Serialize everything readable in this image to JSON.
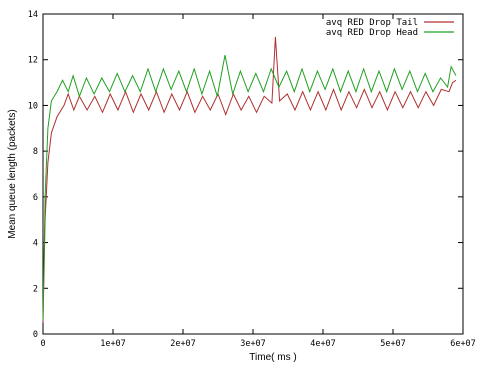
{
  "chart_data": {
    "type": "line",
    "xlabel": "Time( ms )",
    "ylabel": "Mean queue length (packets)",
    "xlim": [
      0,
      60000000
    ],
    "ylim": [
      0,
      14
    ],
    "x_ticks": [
      0,
      10000000,
      20000000,
      30000000,
      40000000,
      50000000,
      60000000
    ],
    "x_tick_labels": [
      "0",
      "1e+07",
      "2e+07",
      "3e+07",
      "4e+07",
      "5e+07",
      "6e+07"
    ],
    "y_ticks": [
      0,
      2,
      4,
      6,
      8,
      10,
      12,
      14
    ],
    "y_tick_labels": [
      "0",
      "2",
      "4",
      "6",
      "8",
      "10",
      "12",
      "14"
    ],
    "grid": false,
    "legend_position": "top-right",
    "series": [
      {
        "name": "avq RED Drop Tail",
        "color": "#b03030",
        "x": [
          0,
          300000,
          700000,
          1200000,
          2000000,
          3000000,
          3600000,
          4400000,
          5200000,
          6300000,
          7400000,
          8500000,
          9600000,
          10700000,
          11800000,
          12900000,
          14000000,
          15100000,
          16200000,
          17300000,
          18400000,
          19500000,
          20600000,
          21700000,
          22800000,
          23900000,
          25000000,
          26100000,
          27200000,
          28300000,
          29400000,
          30500000,
          31600000,
          32700000,
          33200000,
          33800000,
          34900000,
          36000000,
          37100000,
          38200000,
          39300000,
          40400000,
          41500000,
          42600000,
          43700000,
          44800000,
          45900000,
          47000000,
          48100000,
          49200000,
          50300000,
          51400000,
          52500000,
          53600000,
          54700000,
          55800000,
          56900000,
          58000000,
          58500000,
          59000000
        ],
        "y": [
          0.5,
          5.0,
          7.5,
          8.8,
          9.5,
          10.0,
          10.5,
          9.8,
          10.4,
          9.8,
          10.4,
          9.7,
          10.5,
          9.8,
          10.6,
          9.7,
          10.5,
          9.8,
          10.6,
          9.7,
          10.5,
          9.8,
          10.6,
          9.7,
          10.4,
          9.8,
          10.5,
          9.6,
          10.5,
          9.8,
          10.4,
          9.7,
          10.4,
          10.1,
          13.0,
          10.2,
          10.5,
          9.8,
          10.6,
          9.8,
          10.6,
          9.8,
          10.7,
          9.8,
          10.6,
          9.9,
          10.7,
          9.9,
          10.6,
          9.8,
          10.6,
          9.9,
          10.6,
          9.9,
          10.6,
          10.0,
          10.7,
          10.6,
          11.0,
          11.1
        ]
      },
      {
        "name": "avq RED Drop Head",
        "color": "#20a020",
        "x": [
          0,
          300000,
          700000,
          1200000,
          2000000,
          2800000,
          3600000,
          4300000,
          5200000,
          6200000,
          7300000,
          8400000,
          9500000,
          10600000,
          11700000,
          12800000,
          13900000,
          15000000,
          16100000,
          17200000,
          18300000,
          19400000,
          20500000,
          21600000,
          22700000,
          23800000,
          24900000,
          26000000,
          27100000,
          28200000,
          29300000,
          30400000,
          31500000,
          32600000,
          33700000,
          34800000,
          35900000,
          37000000,
          38100000,
          39200000,
          40300000,
          41400000,
          42500000,
          43600000,
          44700000,
          45800000,
          46900000,
          48000000,
          49100000,
          50200000,
          51300000,
          52400000,
          53500000,
          54600000,
          55700000,
          56800000,
          57800000,
          58300000,
          59000000
        ],
        "y": [
          0.6,
          6.0,
          9.0,
          10.2,
          10.6,
          11.1,
          10.6,
          11.3,
          10.4,
          11.2,
          10.5,
          11.2,
          10.6,
          11.4,
          10.6,
          11.3,
          10.6,
          11.6,
          10.6,
          11.6,
          10.7,
          11.5,
          10.6,
          11.6,
          10.5,
          11.5,
          10.4,
          12.2,
          10.5,
          11.5,
          10.6,
          11.4,
          10.6,
          11.6,
          10.8,
          11.5,
          10.6,
          11.6,
          10.6,
          11.5,
          10.7,
          11.6,
          10.6,
          11.5,
          10.6,
          11.6,
          10.6,
          11.5,
          10.6,
          11.6,
          10.7,
          11.5,
          10.6,
          11.4,
          10.6,
          11.2,
          10.8,
          11.7,
          11.3
        ]
      }
    ]
  }
}
